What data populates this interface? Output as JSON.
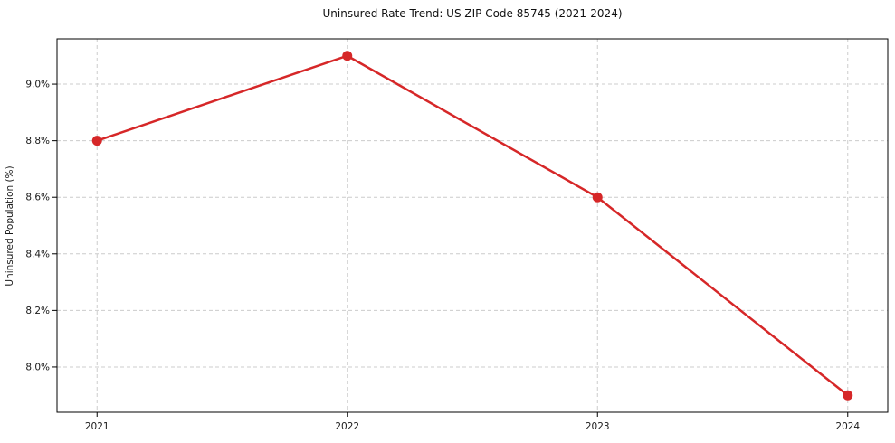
{
  "chart_data": {
    "type": "line",
    "title": "Uninsured Rate Trend: US ZIP Code 85745 (2021-2024)",
    "ylabel": "Uninsured Population (%)",
    "xlabel": "",
    "x": [
      2021,
      2022,
      2023,
      2024
    ],
    "x_tick_labels": [
      "2021",
      "2022",
      "2023",
      "2024"
    ],
    "values": [
      8.8,
      9.1,
      8.6,
      7.9
    ],
    "value_labels": [
      "8.8%",
      "9.1%",
      "8.6%",
      "7.9%"
    ],
    "y_ticks": [
      8.0,
      8.2,
      8.4,
      8.6,
      8.8,
      9.0
    ],
    "y_tick_labels": [
      "8.0%",
      "8.2%",
      "8.4%",
      "8.6%",
      "8.8%",
      "9.0%"
    ],
    "ylim": [
      7.84,
      9.16
    ],
    "xlim": [
      2020.84,
      2024.16
    ],
    "grid": true,
    "legend_position": "none",
    "line_color": "#d62728",
    "marker": "circle",
    "grid_color": "#cccccc",
    "spine_color": "#000000",
    "tick_label_color": "#1a1a1a"
  }
}
